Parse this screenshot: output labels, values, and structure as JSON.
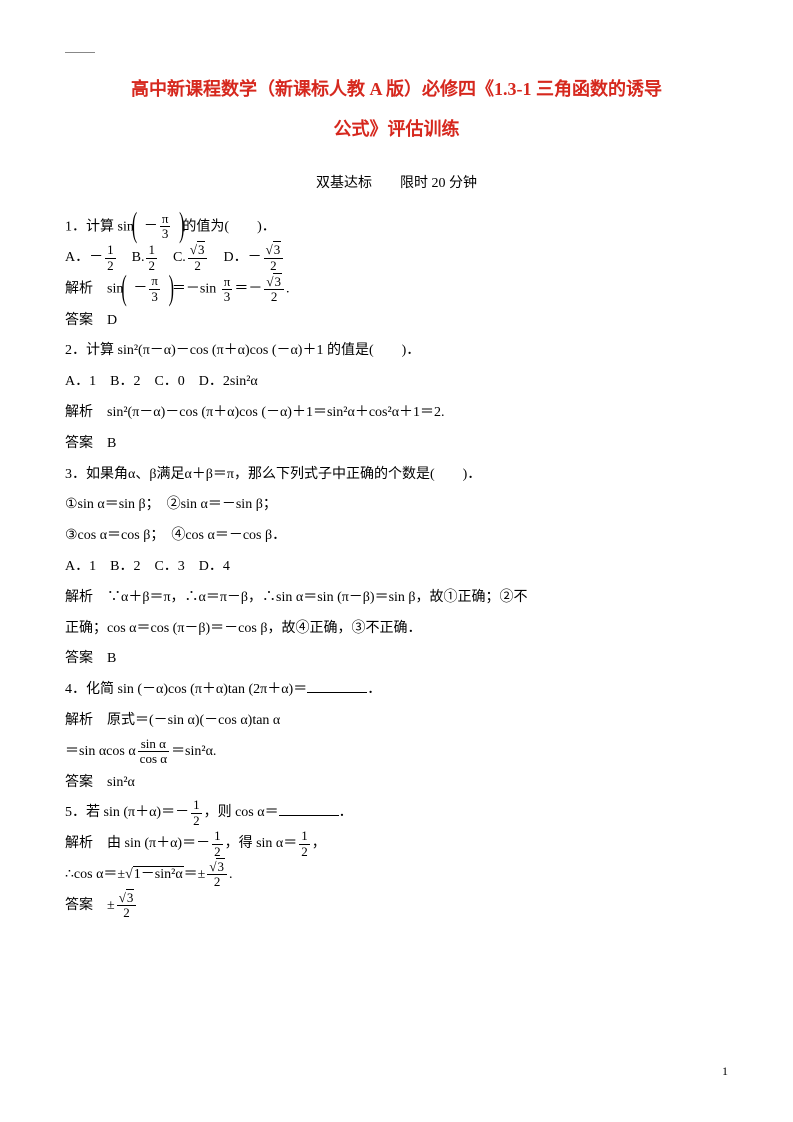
{
  "title_line1": "高中新课程数学（新课标人教 A 版）必修四《1.3-1 三角函数的诱导",
  "title_line2": "公式》评估训练",
  "subtitle": "双基达标　　限时 20 分钟",
  "q1_prefix": "1．计算 sin",
  "q1_arg_num": "π",
  "q1_arg_den": "3",
  "q1_suffix": "的值为(　　)．",
  "q1_A": "A．－",
  "q1_B": "　B.",
  "q1_C": "　C.",
  "q1_D": "　D．－",
  "f_1_2_num": "1",
  "f_1_2_den": "2",
  "f_r3_2_num": "3",
  "f_r3_2_den": "2",
  "sol_label": "解析　",
  "q1_sol_sin": "sin",
  "q1_sol_eq1": "＝－sin ",
  "q1_sol_pi3_num": "π",
  "q1_sol_pi3_den": "3",
  "q1_sol_eq2": "＝－",
  "q1_sol_period": ".",
  "ans_label": "答案　",
  "q1_ans": "D",
  "q2": "2．计算 sin²(π－α)－cos (π＋α)cos (－α)＋1 的值是(　　)．",
  "q2_opts": "A．1　B．2　C．0　D．2sin²α",
  "q2_sol": "sin²(π－α)－cos (π＋α)cos (－α)＋1＝sin²α＋cos²α＋1＝2.",
  "q2_ans": "B",
  "q3": "3．如果角α、β满足α＋β＝π，那么下列式子中正确的个数是(　　)．",
  "q3_line2": "①sin α＝sin β；　②sin α＝－sin β；",
  "q3_line3": "③cos α＝cos β；　④cos α＝－cos β．",
  "q3_opts": "A．1　B．2　C．3　D．4",
  "q3_sol1": "∵α＋β＝π，∴α＝π－β，∴sin α＝sin (π－β)＝sin β，故①正确；②不",
  "q3_sol2": "正确；cos α＝cos (π－β)＝－cos β，故④正确，③不正确．",
  "q3_ans": "B",
  "q4": "4．化简 sin (－α)cos (π＋α)tan (2π＋α)＝",
  "q4_period": "．",
  "q4_sol1": "原式＝(－sin α)(－cos α)tan α",
  "q4_sol2_a": "＝sin αcos α",
  "q4_sol2_num": "sin α",
  "q4_sol2_den": "cos α",
  "q4_sol2_b": "＝sin²α.",
  "q4_ans": "sin²α",
  "q5_a": "5．若 sin (π＋α)＝－",
  "q5_b": "，则 cos α＝",
  "q5_period": "．",
  "q5_sol_a": "由 sin (π＋α)＝－",
  "q5_sol_b": "，得 sin α＝",
  "q5_sol_c": "，",
  "q5_sol2_a": "∴cos α＝±",
  "q5_sol2_root": "1－sin²α",
  "q5_sol2_b": "＝±",
  "q5_sol2_c": ".",
  "q5_ans_a": "±",
  "page_num": "1",
  "minus": "－"
}
